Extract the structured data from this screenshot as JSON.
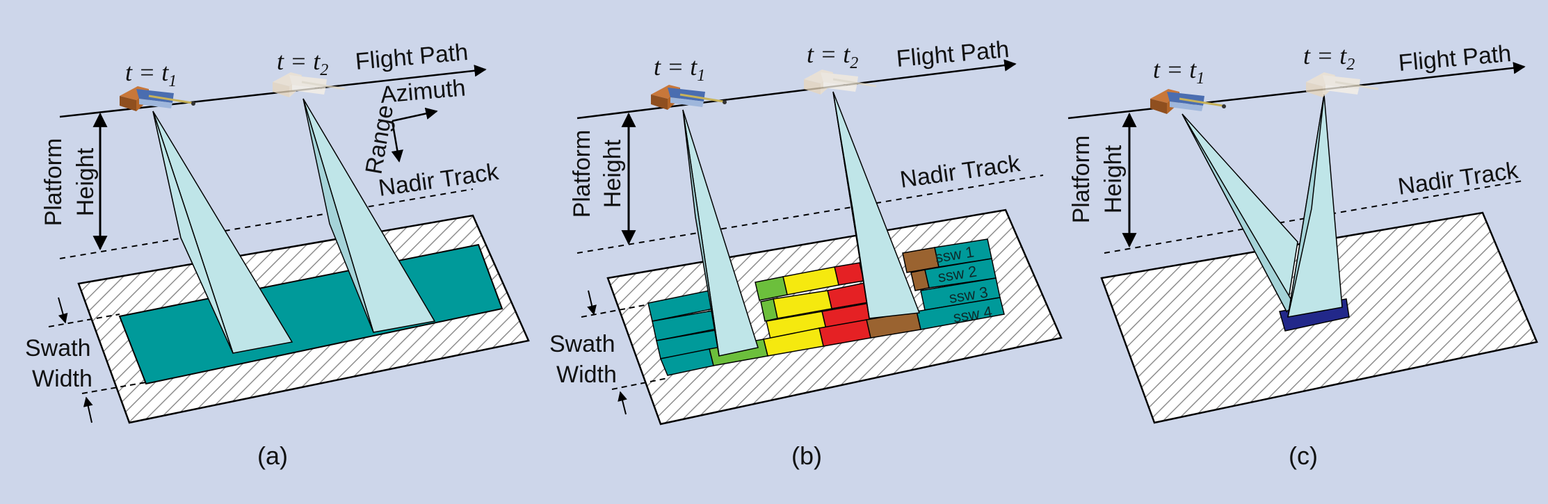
{
  "colors": {
    "background": "#cdd6ea",
    "swath": "#009a9a",
    "beam": "#bfe5e8",
    "green": "#6cbf3c",
    "yellow": "#f5e90f",
    "red": "#e52124",
    "brown": "#9a6330",
    "spot": "#22288a"
  },
  "labels": {
    "t1": "t = t",
    "t1_sub": "1",
    "t2": "t = t",
    "t2_sub": "2",
    "flight_path": "Flight Path",
    "platform": "Platform",
    "height": "Height",
    "swath": "Swath",
    "width": "Width",
    "nadir_track": "Nadir Track",
    "azimuth": "Azimuth",
    "range": "Range"
  },
  "panels": [
    {
      "id": "a",
      "caption": "(a)"
    },
    {
      "id": "b",
      "caption": "(b)",
      "subswaths": [
        "ssw 1",
        "ssw 2",
        "ssw 3",
        "ssw 4"
      ]
    },
    {
      "id": "c",
      "caption": "(c)"
    }
  ]
}
